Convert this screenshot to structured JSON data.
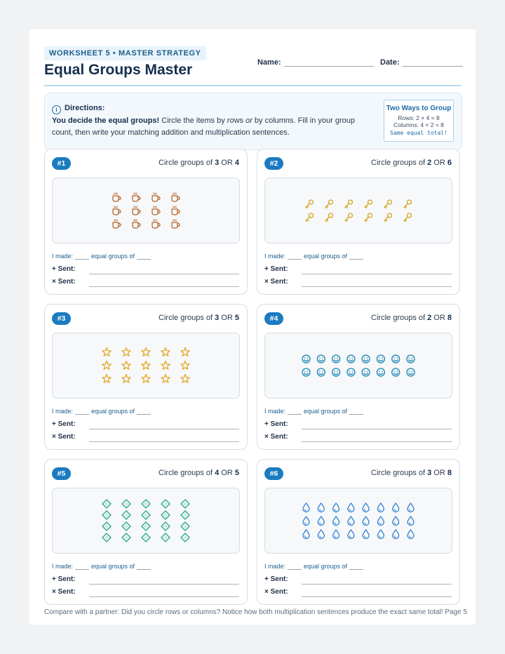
{
  "header": {
    "badge": "WORKSHEET 5 • MASTER STRATEGY",
    "title": "Equal Groups Master",
    "name_label": "Name:",
    "date_label": "Date:"
  },
  "directions": {
    "heading": "Directions:",
    "bold_text": "You decide the equal groups!",
    "text_1": " Circle the items by rows ",
    "text_or": "or",
    "text_2": " by columns. Fill in your group count, then write your matching addition and multiplication sentences.",
    "tip": {
      "title": "Two Ways to Group",
      "rows": "Rows: 2 × 4 = 8",
      "columns": "Columns: 4 × 2 = 8",
      "note": "Same equal total!"
    }
  },
  "labels": {
    "circle_prefix": "Circle groups of ",
    "or": " OR ",
    "made_prefix": "I made:",
    "made_middle": "equal groups of",
    "add": "+ Sent:",
    "mult": "× Sent:"
  },
  "problems": [
    {
      "num": "#1",
      "a": "3",
      "b": "4",
      "rows": 3,
      "cols": 4,
      "icon": "coffee-cup-icon",
      "color": "#b8662a"
    },
    {
      "num": "#2",
      "a": "2",
      "b": "6",
      "rows": 2,
      "cols": 6,
      "icon": "key-icon",
      "color": "#d9a31c"
    },
    {
      "num": "#3",
      "a": "3",
      "b": "5",
      "rows": 3,
      "cols": 5,
      "icon": "star-icon",
      "color": "#e6a722"
    },
    {
      "num": "#4",
      "a": "2",
      "b": "8",
      "rows": 2,
      "cols": 8,
      "icon": "smiley-face-icon",
      "color": "#1a86b3"
    },
    {
      "num": "#5",
      "a": "4",
      "b": "5",
      "rows": 4,
      "cols": 5,
      "icon": "diamond-icon",
      "color": "#27a88a"
    },
    {
      "num": "#6",
      "a": "3",
      "b": "8",
      "rows": 3,
      "cols": 8,
      "icon": "water-drop-icon",
      "color": "#2d7fd0"
    }
  ],
  "footer": "Compare with a partner: Did you circle rows or columns? Notice how both multiplication sentences produce the exact same total! Page 5"
}
